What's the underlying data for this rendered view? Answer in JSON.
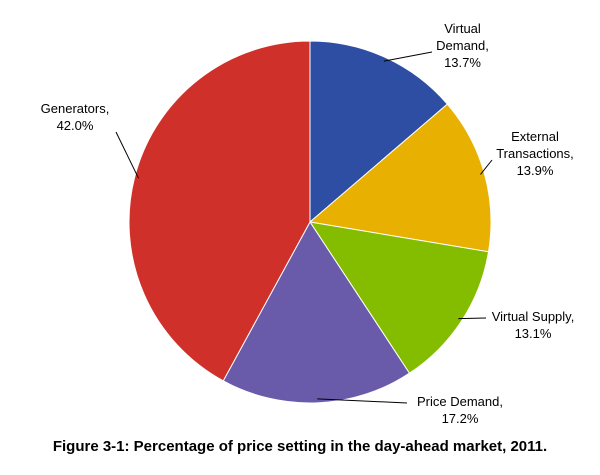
{
  "chart_data": {
    "type": "pie",
    "title": "Figure 3-1: Percentage of price setting in the day-ahead market, 2011.",
    "categories": [
      "Virtual Demand,",
      "External Transactions,",
      "Virtual Supply,",
      "Price Demand,",
      "Generators,"
    ],
    "values": [
      13.7,
      13.9,
      13.1,
      17.2,
      42.0
    ],
    "value_labels": [
      "13.7%",
      "13.9%",
      "13.1%",
      "17.2%",
      "42.0%"
    ],
    "colors": [
      "#2e4ea3",
      "#e8b000",
      "#84bd00",
      "#6a5aaa",
      "#d0302a"
    ]
  }
}
